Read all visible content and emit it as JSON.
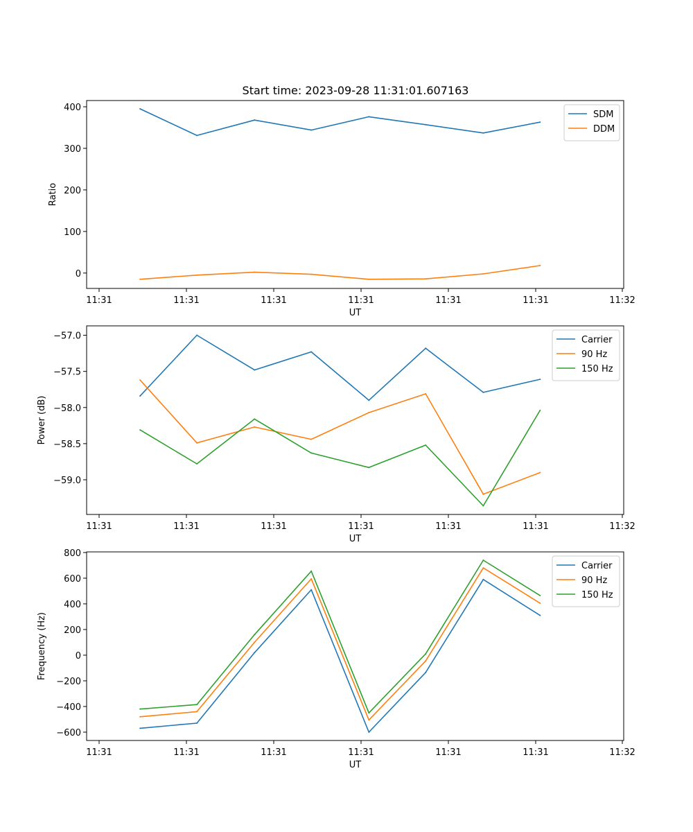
{
  "figure_title": "Start time: 2023-09-28 11:31:01.607163",
  "colors": {
    "blue": "#1f77b4",
    "orange": "#ff7f0e",
    "green": "#2ca02c"
  },
  "chart_data": [
    {
      "type": "line",
      "title": "Start time: 2023-09-28 11:31:01.607163",
      "xlabel": "UT",
      "ylabel": "Ratio",
      "xticks": [
        "11:31",
        "11:31",
        "11:31",
        "11:31",
        "11:31",
        "11:31",
        "11:32"
      ],
      "yticks": [
        0,
        100,
        200,
        300,
        400
      ],
      "ytick_labels": [
        "0",
        "100",
        "200",
        "300",
        "400"
      ],
      "xlim": [
        0,
        6
      ],
      "ylim": [
        -37,
        415
      ],
      "x": [
        0.47,
        1.12,
        1.78,
        2.43,
        3.09,
        3.74,
        4.4,
        5.05
      ],
      "legend": "top-right",
      "series": [
        {
          "name": "SDM",
          "color": "#1f77b4",
          "values": [
            395,
            331,
            368,
            344,
            376,
            357,
            337,
            363
          ]
        },
        {
          "name": "DDM",
          "color": "#ff7f0e",
          "values": [
            -15,
            -5,
            2,
            -3,
            -15,
            -14,
            -2,
            18
          ]
        }
      ]
    },
    {
      "type": "line",
      "title": "",
      "xlabel": "UT",
      "ylabel": "Power (dB)",
      "xticks": [
        "11:31",
        "11:31",
        "11:31",
        "11:31",
        "11:31",
        "11:31",
        "11:32"
      ],
      "yticks": [
        -57.0,
        -57.5,
        -58.0,
        -58.5,
        -59.0
      ],
      "ytick_labels": [
        "−57.0",
        "−57.5",
        "−58.0",
        "−58.5",
        "−59.0"
      ],
      "xlim": [
        0,
        6
      ],
      "ylim": [
        -59.48,
        -56.87
      ],
      "x": [
        0.47,
        1.12,
        1.78,
        2.43,
        3.09,
        3.74,
        4.4,
        5.05
      ],
      "legend": "top-right",
      "series": [
        {
          "name": "Carrier",
          "color": "#1f77b4",
          "values": [
            -57.84,
            -57.0,
            -57.48,
            -57.23,
            -57.9,
            -57.18,
            -57.79,
            -57.61
          ]
        },
        {
          "name": "90 Hz",
          "color": "#ff7f0e",
          "values": [
            -57.62,
            -58.49,
            -58.27,
            -58.44,
            -58.07,
            -57.81,
            -59.2,
            -58.9
          ]
        },
        {
          "name": "150 Hz",
          "color": "#2ca02c",
          "values": [
            -58.31,
            -58.78,
            -58.16,
            -58.63,
            -58.83,
            -58.52,
            -59.36,
            -58.04
          ]
        }
      ]
    },
    {
      "type": "line",
      "title": "",
      "xlabel": "UT",
      "ylabel": "Frequency (Hz)",
      "xticks": [
        "11:31",
        "11:31",
        "11:31",
        "11:31",
        "11:31",
        "11:31",
        "11:32"
      ],
      "yticks": [
        -600,
        -400,
        -200,
        0,
        200,
        400,
        600,
        800
      ],
      "ytick_labels": [
        "−600",
        "−400",
        "−200",
        "0",
        "200",
        "400",
        "600",
        "800"
      ],
      "xlim": [
        0,
        6
      ],
      "ylim": [
        -665,
        805
      ],
      "x": [
        0.47,
        1.12,
        1.78,
        2.43,
        3.09,
        3.74,
        4.4,
        5.05
      ],
      "legend": "top-right",
      "series": [
        {
          "name": "Carrier",
          "color": "#1f77b4",
          "values": [
            -570,
            -530,
            20,
            510,
            -600,
            -135,
            590,
            310
          ]
        },
        {
          "name": "90 Hz",
          "color": "#ff7f0e",
          "values": [
            -480,
            -440,
            100,
            595,
            -505,
            -45,
            680,
            405
          ]
        },
        {
          "name": "150 Hz",
          "color": "#2ca02c",
          "values": [
            -420,
            -385,
            160,
            655,
            -450,
            10,
            740,
            465
          ]
        }
      ]
    }
  ]
}
